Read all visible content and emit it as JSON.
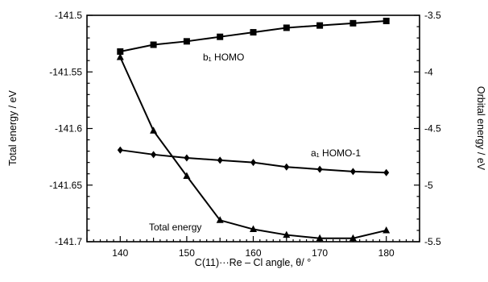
{
  "chart_data": {
    "type": "line",
    "xlabel": "C(11)···Re – Cl angle, θ/ °",
    "ylabel_left": "Total energy / eV",
    "ylabel_right": "Orbital energy / eV",
    "x_ticks": [
      140,
      150,
      160,
      170,
      180
    ],
    "xlim": [
      135,
      185
    ],
    "y_left_ticks": [
      "-141.5",
      "-141.55",
      "-141.6",
      "-141.65",
      "-141.7"
    ],
    "y_left_lim": [
      -141.7,
      -141.5
    ],
    "y_right_ticks": [
      "-3.5",
      "-4",
      "-4.5",
      "-5",
      "-5.5"
    ],
    "y_right_lim": [
      -5.5,
      -3.5
    ],
    "grid": false,
    "series": [
      {
        "name": "Total energy",
        "axis": "left",
        "marker": "triangle",
        "x": [
          140,
          145,
          150,
          155,
          160,
          165,
          170,
          175,
          180
        ],
        "y": [
          -141.537,
          -141.602,
          -141.642,
          -141.681,
          -141.689,
          -141.694,
          -141.697,
          -141.697,
          -141.69
        ]
      },
      {
        "name": "b₁ HOMO",
        "axis": "right",
        "marker": "square",
        "x": [
          140,
          145,
          150,
          155,
          160,
          165,
          170,
          175,
          180
        ],
        "y": [
          -3.82,
          -3.76,
          -3.73,
          -3.69,
          -3.65,
          -3.61,
          -3.59,
          -3.57,
          -3.55
        ]
      },
      {
        "name": "a₁ HOMO-1",
        "axis": "right",
        "marker": "diamond",
        "x": [
          140,
          145,
          150,
          155,
          160,
          165,
          170,
          175,
          180
        ],
        "y": [
          -4.69,
          -4.73,
          -4.76,
          -4.78,
          -4.8,
          -4.84,
          -4.86,
          -4.88,
          -4.89
        ]
      }
    ],
    "annotations": [
      {
        "text": "b₁  HOMO"
      },
      {
        "text": "a₁  HOMO-1"
      },
      {
        "text": "Total energy"
      }
    ]
  }
}
